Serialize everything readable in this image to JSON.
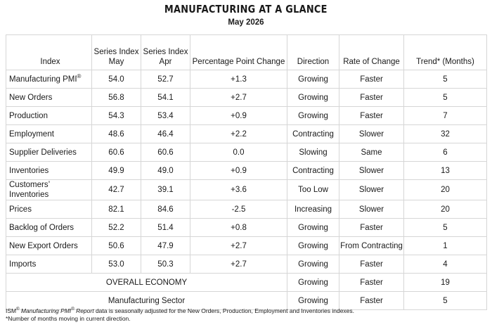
{
  "title": "MANUFACTURING AT A GLANCE",
  "subtitle": "May 2026",
  "columns": {
    "index": "Index",
    "may_line1": "Series Index",
    "may_line2": "May",
    "apr_line1": "Series Index",
    "apr_line2": "Apr",
    "change": "Percentage Point Change",
    "direction": "Direction",
    "rate": "Rate of Change",
    "trend": "Trend* (Months)"
  },
  "pmi_row": {
    "name": "Manufacturing PMI",
    "reg": "®",
    "may": "54.0",
    "apr": "52.7",
    "change": "+1.3",
    "direction": "Growing",
    "rate": "Faster",
    "trend": "5"
  },
  "rows": [
    {
      "name": "New Orders",
      "may": "56.8",
      "apr": "54.1",
      "change": "+2.7",
      "direction": "Growing",
      "rate": "Faster",
      "trend": "5"
    },
    {
      "name": "Production",
      "may": "54.3",
      "apr": "53.4",
      "change": "+0.9",
      "direction": "Growing",
      "rate": "Faster",
      "trend": "7"
    },
    {
      "name": "Employment",
      "may": "48.6",
      "apr": "46.4",
      "change": "+2.2",
      "direction": "Contracting",
      "rate": "Slower",
      "trend": "32"
    },
    {
      "name": "Supplier Deliveries",
      "may": "60.6",
      "apr": "60.6",
      "change": "0.0",
      "direction": "Slowing",
      "rate": "Same",
      "trend": "6"
    },
    {
      "name": "Inventories",
      "may": "49.9",
      "apr": "49.0",
      "change": "+0.9",
      "direction": "Contracting",
      "rate": "Slower",
      "trend": "13"
    },
    {
      "name": "Customers’ Inventories",
      "may": "42.7",
      "apr": "39.1",
      "change": "+3.6",
      "direction": "Too Low",
      "rate": "Slower",
      "trend": "20"
    },
    {
      "name": "Prices",
      "may": "82.1",
      "apr": "84.6",
      "change": "-2.5",
      "direction": "Increasing",
      "rate": "Slower",
      "trend": "20"
    },
    {
      "name": "Backlog of Orders",
      "may": "52.2",
      "apr": "51.4",
      "change": "+0.8",
      "direction": "Growing",
      "rate": "Faster",
      "trend": "5"
    },
    {
      "name": "New Export Orders",
      "may": "50.6",
      "apr": "47.9",
      "change": "+2.7",
      "direction": "Growing",
      "rate": "From Contracting",
      "trend": "1"
    },
    {
      "name": "Imports",
      "may": "53.0",
      "apr": "50.3",
      "change": "+2.7",
      "direction": "Growing",
      "rate": "Faster",
      "trend": "4"
    }
  ],
  "summary": [
    {
      "name": "OVERALL ECONOMY",
      "direction": "Growing",
      "rate": "Faster",
      "trend": "19"
    },
    {
      "name": "Manufacturing Sector",
      "direction": "Growing",
      "rate": "Faster",
      "trend": "5"
    }
  ],
  "footnotes": {
    "ism": "ISM",
    "reg": "®",
    "report_name": "Manufacturing PMI",
    "report_word": "Report",
    "line1_rest": "data is seasonally adjusted for the New Orders, Production, Employment and Inventories indexes.",
    "line2": "*Number of months moving in current direction."
  }
}
